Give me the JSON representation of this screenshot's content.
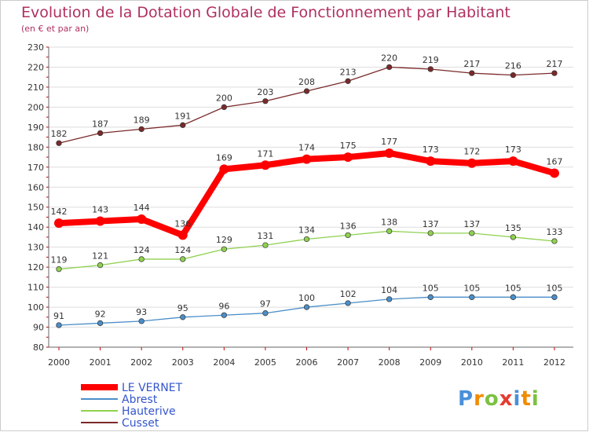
{
  "chart_data": {
    "type": "line",
    "title": "Evolution de la Dotation Globale de Fonctionnement par Habitant",
    "subtitle": "(en € et par an)",
    "xlabel": "",
    "ylabel": "",
    "x": [
      "2000",
      "2001",
      "2002",
      "2003",
      "2004",
      "2005",
      "2006",
      "2007",
      "2008",
      "2009",
      "2010",
      "2011",
      "2012"
    ],
    "ylim": [
      80,
      230
    ],
    "yticks": [
      80,
      90,
      100,
      110,
      120,
      130,
      140,
      150,
      160,
      170,
      180,
      190,
      200,
      210,
      220,
      230
    ],
    "grid": "horizontal",
    "legend_position": "bottom-left",
    "series": [
      {
        "name": "LE VERNET",
        "color": "#ff0000",
        "values": [
          142,
          143,
          144,
          136,
          169,
          171,
          174,
          175,
          177,
          173,
          172,
          173,
          167
        ],
        "labels": [
          "142",
          "143",
          "144",
          "136",
          "169",
          "171",
          "174",
          "175",
          "177",
          "173",
          "172",
          "173",
          "167"
        ]
      },
      {
        "name": "Abrest",
        "color": "#4b8ec8",
        "values": [
          91,
          92,
          93,
          95,
          96,
          97,
          100,
          102,
          104,
          105,
          105,
          105,
          105
        ],
        "labels": [
          "91",
          "92",
          "93",
          "95",
          "96",
          "97",
          "100",
          "102",
          "104",
          "105",
          "105",
          "105",
          "105"
        ]
      },
      {
        "name": "Hauterive",
        "color": "#8fd14f",
        "values": [
          119,
          121,
          124,
          124,
          129,
          131,
          134,
          136,
          138,
          137,
          137,
          135,
          133
        ],
        "labels": [
          "119",
          "121",
          "124",
          "124",
          "129",
          "131",
          "134",
          "136",
          "138",
          "137",
          "137",
          "135",
          "133"
        ]
      },
      {
        "name": "Cusset",
        "color": "#7a2a2a",
        "values": [
          182,
          187,
          189,
          191,
          200,
          203,
          208,
          213,
          220,
          219,
          217,
          216,
          217
        ],
        "labels": [
          "182",
          "187",
          "189",
          "191",
          "200",
          "203",
          "208",
          "213",
          "220",
          "219",
          "217",
          "216",
          "217"
        ]
      }
    ]
  },
  "watermark": {
    "text": "Proxiti",
    "colors": [
      "#4a90d9",
      "#f08c00",
      "#7cc142",
      "#e63b2e"
    ]
  }
}
